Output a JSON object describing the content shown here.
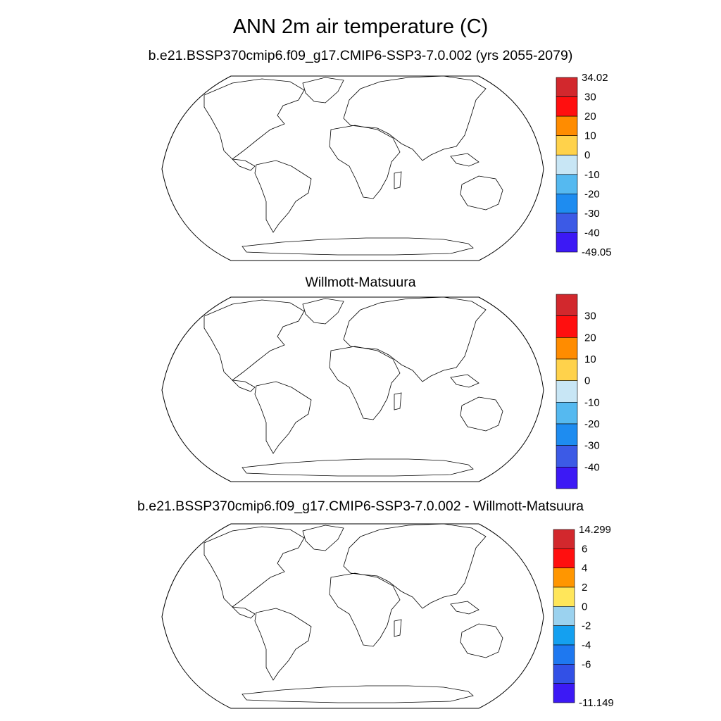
{
  "figure": {
    "title": "ANN 2m air temperature (C)"
  },
  "panels": [
    {
      "id": "model",
      "subtitle": "b.e21.BSSP370cmip6.f09_g17.CMIP6-SSP3-7.0.002 (yrs 2055-2079)",
      "colorbar": {
        "colors": [
          "#d2282d",
          "#ff0f0f",
          "#ff8c00",
          "#ffd24b",
          "#c8e6f5",
          "#55b9f0",
          "#1e8cf0",
          "#3c5ae6",
          "#3c19f5"
        ],
        "labels": [
          "34.02",
          "30",
          "20",
          "10",
          "0",
          "-10",
          "-20",
          "-30",
          "-40",
          "-49.05"
        ]
      }
    },
    {
      "id": "obs",
      "subtitle": "Willmott-Matsuura",
      "colorbar": {
        "colors": [
          "#d2282d",
          "#ff0f0f",
          "#ff8c00",
          "#ffd24b",
          "#c8e6f5",
          "#55b9f0",
          "#1e8cf0",
          "#3c5ae6",
          "#3c19f5"
        ],
        "labels": [
          "",
          "30",
          "20",
          "10",
          "0",
          "-10",
          "-20",
          "-30",
          "-40",
          ""
        ]
      }
    },
    {
      "id": "diff",
      "subtitle": "b.e21.BSSP370cmip6.f09_g17.CMIP6-SSP3-7.0.002 - Willmott-Matsuura",
      "colorbar": {
        "colors": [
          "#d2282d",
          "#ff0f0f",
          "#ff9600",
          "#ffe65a",
          "#9bd2ef",
          "#14a0f0",
          "#1e78f0",
          "#3250e6",
          "#3c19f5"
        ],
        "labels": [
          "14.299",
          "6",
          "4",
          "2",
          "0",
          "-2",
          "-4",
          "-6",
          "-11.149"
        ]
      }
    }
  ]
}
